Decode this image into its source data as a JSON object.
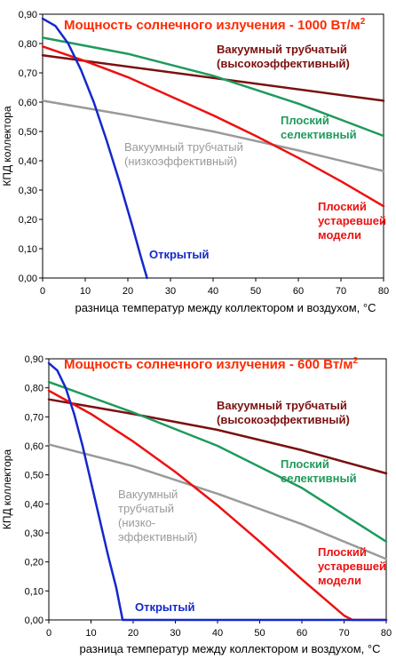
{
  "chart_data": [
    {
      "type": "line",
      "title": "Мощность солнечного излучения - 1000 Вт/м",
      "title_sup": "2",
      "xlabel": "разница температур между коллектором и воздухом, °C",
      "ylabel": "КПД коллектора",
      "xlim": [
        0,
        80
      ],
      "ylim": [
        0,
        0.9
      ],
      "x_ticks": [
        "0",
        "10",
        "20",
        "30",
        "40",
        "50",
        "60",
        "70",
        "80"
      ],
      "y_ticks": [
        "0,00",
        "0,10",
        "0,20",
        "0,30",
        "0,40",
        "0,50",
        "0,60",
        "0,70",
        "0,80",
        "0,90"
      ],
      "series": [
        {
          "key": "vac-high",
          "label_lines": [
            "Вакуумный трубчатый",
            "(высокоэффективный)"
          ],
          "color": "#7a1010",
          "bold": true,
          "points": [
            [
              0,
              0.76
            ],
            [
              80,
              0.605
            ]
          ]
        },
        {
          "key": "flat-selective",
          "label_lines": [
            "Плоский",
            "селективный"
          ],
          "color": "#1f9a5c",
          "bold": true,
          "points": [
            [
              0,
              0.82
            ],
            [
              20,
              0.765
            ],
            [
              40,
              0.69
            ],
            [
              60,
              0.595
            ],
            [
              80,
              0.485
            ]
          ]
        },
        {
          "key": "vac-low",
          "label_lines": [
            "Вакуумный трубчатый",
            "(низкоэффективный)"
          ],
          "color": "#9a9a9a",
          "bold": false,
          "points": [
            [
              0,
              0.605
            ],
            [
              20,
              0.555
            ],
            [
              40,
              0.5
            ],
            [
              60,
              0.435
            ],
            [
              80,
              0.365
            ]
          ]
        },
        {
          "key": "flat-old",
          "label_lines": [
            "Плоский",
            "устаревшей",
            "модели"
          ],
          "color": "#ee1111",
          "bold": true,
          "points": [
            [
              0,
              0.79
            ],
            [
              10,
              0.74
            ],
            [
              20,
              0.685
            ],
            [
              30,
              0.62
            ],
            [
              40,
              0.555
            ],
            [
              50,
              0.485
            ],
            [
              60,
              0.41
            ],
            [
              70,
              0.33
            ],
            [
              80,
              0.245
            ]
          ]
        },
        {
          "key": "open",
          "label_lines": [
            "Открытый"
          ],
          "color": "#1428cc",
          "bold": true,
          "points": [
            [
              0,
              0.885
            ],
            [
              3,
              0.86
            ],
            [
              6,
              0.8
            ],
            [
              9,
              0.71
            ],
            [
              12,
              0.6
            ],
            [
              15,
              0.47
            ],
            [
              18,
              0.33
            ],
            [
              21,
              0.18
            ],
            [
              23,
              0.075
            ],
            [
              24.5,
              0.0
            ]
          ]
        }
      ]
    },
    {
      "type": "line",
      "title": "Мощность солнечного излучения - 600 Вт/м",
      "title_sup": "2",
      "xlabel": "разница температур между коллектором и воздухом, °C",
      "ylabel": "КПД коллектора",
      "xlim": [
        0,
        80
      ],
      "ylim": [
        0,
        0.9
      ],
      "x_ticks": [
        "0",
        "10",
        "20",
        "30",
        "40",
        "50",
        "60",
        "70",
        "80"
      ],
      "y_ticks": [
        "0,00",
        "0,10",
        "0,20",
        "0,30",
        "0,40",
        "0,50",
        "0,60",
        "0,70",
        "0,80",
        "0,90"
      ],
      "series": [
        {
          "key": "vac-high",
          "label_lines": [
            "Вакуумный трубчатый",
            "(высокоэффективный)"
          ],
          "color": "#7a1010",
          "bold": true,
          "points": [
            [
              0,
              0.76
            ],
            [
              20,
              0.71
            ],
            [
              40,
              0.655
            ],
            [
              60,
              0.585
            ],
            [
              80,
              0.505
            ]
          ]
        },
        {
          "key": "flat-selective",
          "label_lines": [
            "Плоский",
            "селективный"
          ],
          "color": "#1f9a5c",
          "bold": true,
          "points": [
            [
              0,
              0.82
            ],
            [
              20,
              0.715
            ],
            [
              40,
              0.6
            ],
            [
              60,
              0.455
            ],
            [
              80,
              0.27
            ]
          ]
        },
        {
          "key": "vac-low",
          "label_lines": [
            "Вакуумный",
            "трубчатый",
            "(низко-",
            "эффективный)"
          ],
          "color": "#9a9a9a",
          "bold": false,
          "points": [
            [
              0,
              0.605
            ],
            [
              20,
              0.53
            ],
            [
              40,
              0.435
            ],
            [
              60,
              0.33
            ],
            [
              80,
              0.21
            ]
          ]
        },
        {
          "key": "flat-old",
          "label_lines": [
            "Плоский",
            "устаревшей",
            "модели"
          ],
          "color": "#ee1111",
          "bold": true,
          "points": [
            [
              0,
              0.79
            ],
            [
              10,
              0.71
            ],
            [
              20,
              0.615
            ],
            [
              30,
              0.51
            ],
            [
              40,
              0.395
            ],
            [
              50,
              0.27
            ],
            [
              60,
              0.14
            ],
            [
              70,
              0.015
            ],
            [
              72,
              0.0
            ],
            [
              80,
              0.0
            ]
          ]
        },
        {
          "key": "open",
          "label_lines": [
            "Открытый"
          ],
          "color": "#1428cc",
          "bold": true,
          "points": [
            [
              0,
              0.885
            ],
            [
              2,
              0.86
            ],
            [
              4,
              0.8
            ],
            [
              6,
              0.71
            ],
            [
              8,
              0.6
            ],
            [
              10,
              0.475
            ],
            [
              12,
              0.35
            ],
            [
              14,
              0.225
            ],
            [
              16,
              0.11
            ],
            [
              17.5,
              0.0
            ],
            [
              80,
              0.0
            ]
          ]
        }
      ]
    }
  ]
}
